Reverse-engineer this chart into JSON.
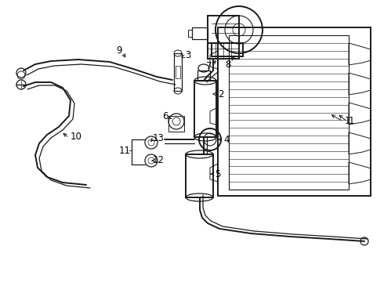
{
  "bg_color": "#ffffff",
  "line_color": "#1a1a1a",
  "fig_width": 4.9,
  "fig_height": 3.6,
  "dpi": 100,
  "label_fontsize": 8.5,
  "label_color": "#000000"
}
